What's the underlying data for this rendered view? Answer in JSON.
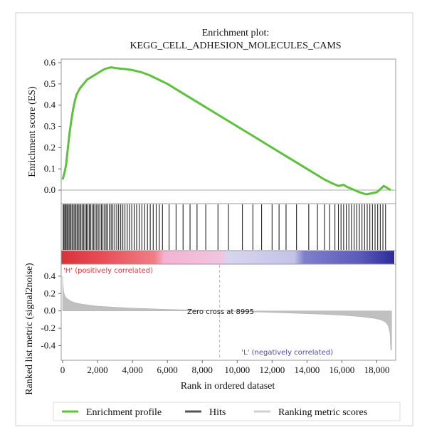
{
  "chart_data": {
    "type": "line",
    "title": "Enrichment plot:",
    "subtitle": "KEGG_CELL_ADHESION_MOLECULES_CAMS",
    "xlabel": "Rank in ordered dataset",
    "xlim": [
      0,
      19000
    ],
    "x_ticks": [
      0,
      2000,
      4000,
      6000,
      8000,
      10000,
      12000,
      14000,
      16000,
      18000
    ],
    "x_tick_labels": [
      "0",
      "2,000",
      "4,000",
      "6,000",
      "8,000",
      "10,000",
      "12,000",
      "14,000",
      "16,000",
      "18,000"
    ],
    "es_panel": {
      "ylabel": "Enrichment score (ES)",
      "ylim": [
        -0.03,
        0.6
      ],
      "y_ticks": [
        0.0,
        0.1,
        0.2,
        0.3,
        0.4,
        0.5,
        0.6
      ],
      "y_tick_labels": [
        "0.0",
        "0.1",
        "0.2",
        "0.3",
        "0.4",
        "0.5",
        "0.6"
      ],
      "series": [
        {
          "name": "Enrichment profile",
          "color": "#5cc13b",
          "x": [
            0,
            100,
            200,
            300,
            400,
            500,
            600,
            700,
            800,
            1000,
            1200,
            1400,
            1600,
            1800,
            2000,
            2200,
            2400,
            2600,
            2800,
            3000,
            3300,
            3600,
            4000,
            4500,
            5000,
            5500,
            6000,
            6500,
            7000,
            8000,
            9000,
            10000,
            11000,
            12000,
            13000,
            14000,
            15000,
            15500,
            15800,
            16100,
            16300,
            16600,
            17000,
            17400,
            17700,
            18000,
            18200,
            18400,
            18600,
            18800
          ],
          "y": [
            0.05,
            0.08,
            0.12,
            0.2,
            0.27,
            0.33,
            0.38,
            0.42,
            0.45,
            0.48,
            0.5,
            0.52,
            0.53,
            0.54,
            0.55,
            0.56,
            0.57,
            0.575,
            0.578,
            0.575,
            0.572,
            0.57,
            0.565,
            0.555,
            0.54,
            0.52,
            0.5,
            0.475,
            0.45,
            0.4,
            0.35,
            0.3,
            0.25,
            0.2,
            0.15,
            0.1,
            0.05,
            0.03,
            0.02,
            0.025,
            0.015,
            0.005,
            -0.01,
            -0.02,
            -0.015,
            -0.01,
            0.005,
            0.02,
            0.01,
            0.0
          ]
        }
      ]
    },
    "hits_panel": {
      "name": "Hits",
      "color": "#222222",
      "x": [
        30,
        80,
        140,
        200,
        260,
        330,
        400,
        470,
        540,
        610,
        690,
        760,
        830,
        900,
        980,
        1050,
        1130,
        1210,
        1290,
        1370,
        1450,
        1530,
        1610,
        1690,
        1780,
        1860,
        1950,
        2040,
        2130,
        2220,
        2310,
        2400,
        2490,
        2580,
        2680,
        2780,
        2880,
        2990,
        3100,
        3210,
        3330,
        3450,
        3570,
        3700,
        3830,
        3960,
        4100,
        4240,
        4390,
        4540,
        4700,
        4860,
        5020,
        5190,
        5360,
        5540,
        5720,
        6100,
        6500,
        6900,
        7300,
        7700,
        8200,
        8900,
        9500,
        10300,
        10900,
        11400,
        12000,
        12400,
        12800,
        13400,
        14100,
        14600,
        15000,
        15300,
        15600,
        15800,
        15950,
        16100,
        16250,
        16400,
        16550,
        16700,
        16850,
        17000,
        17150,
        17300,
        17450,
        17600,
        17750,
        17900,
        18050,
        18200,
        18350,
        18500
      ]
    },
    "ranking_panel": {
      "name": "Ranking metric scores",
      "ylabel": "Ranked list metric (signal2noise)",
      "ylim": [
        -0.47,
        0.44
      ],
      "y_ticks": [
        0.4,
        0.2,
        0.0,
        -0.2,
        -0.4
      ],
      "y_tick_labels": [
        "0.4",
        "0.2",
        "0.0",
        "-0.2",
        "-0.4"
      ],
      "color": "#c0c0c0",
      "x": [
        0,
        20,
        60,
        120,
        200,
        350,
        500,
        800,
        1200,
        2000,
        3000,
        4000,
        5000,
        6000,
        7000,
        8000,
        8995,
        10000,
        11000,
        12000,
        13000,
        14000,
        15000,
        16000,
        17000,
        17800,
        18200,
        18500,
        18650,
        18750,
        18800,
        18850
      ],
      "y": [
        0.4,
        0.3,
        0.22,
        0.18,
        0.15,
        0.13,
        0.11,
        0.09,
        0.075,
        0.055,
        0.042,
        0.032,
        0.025,
        0.018,
        0.012,
        0.006,
        0.0,
        -0.006,
        -0.012,
        -0.018,
        -0.025,
        -0.032,
        -0.04,
        -0.05,
        -0.065,
        -0.085,
        -0.1,
        -0.13,
        -0.17,
        -0.25,
        -0.45,
        -0.45
      ],
      "zero_cross": 8995,
      "zero_cross_label": "Zero cross at 8995",
      "h_label": "'H' (positively correlated)",
      "l_label": "'L' (negatively correlated)",
      "h_color": "#e23636",
      "l_color": "#4a4aa8"
    },
    "gradient_bar": {
      "stops": [
        {
          "at": 0.0,
          "color": "#d8323a"
        },
        {
          "at": 0.12,
          "color": "#e64d55"
        },
        {
          "at": 0.28,
          "color": "#f07e86"
        },
        {
          "at": 0.31,
          "color": "#f3b3d3"
        },
        {
          "at": 0.48,
          "color": "#f1c5df"
        },
        {
          "at": 0.5,
          "color": "#d7d5ee"
        },
        {
          "at": 0.7,
          "color": "#c4c3e8"
        },
        {
          "at": 0.73,
          "color": "#7f7fcc"
        },
        {
          "at": 0.9,
          "color": "#5a59b9"
        },
        {
          "at": 1.0,
          "color": "#2d2b99"
        }
      ]
    },
    "legend": {
      "placement": "bottom",
      "items": [
        {
          "label": "Enrichment profile",
          "color": "#5cc13b"
        },
        {
          "label": "Hits",
          "color": "#555555"
        },
        {
          "label": "Ranking metric scores",
          "color": "#d0d0d0"
        }
      ]
    }
  }
}
